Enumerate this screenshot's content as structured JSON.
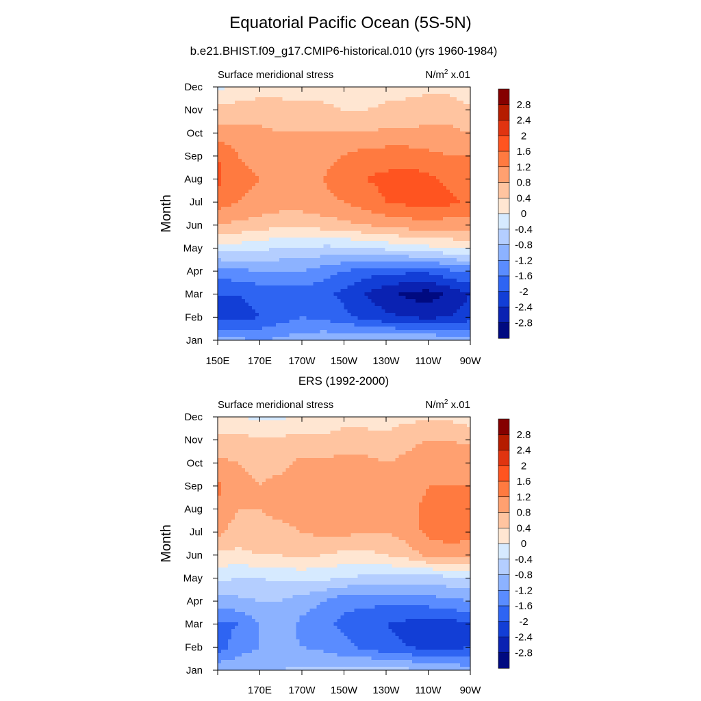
{
  "title": "Equatorial Pacific Ocean (5S-5N)",
  "colorbar": {
    "labels": [
      "2.8",
      "2.4",
      "2",
      "1.6",
      "1.2",
      "0.8",
      "0.4",
      "0",
      "-0.4",
      "-0.8",
      "-1.2",
      "-1.6",
      "-2",
      "-2.4",
      "-2.8"
    ],
    "colors": [
      "#850000",
      "#b51c00",
      "#e03410",
      "#ff5420",
      "#ff7a40",
      "#ffa070",
      "#ffc4a0",
      "#ffe6d2",
      "#d6eaff",
      "#b4ceff",
      "#8cb2ff",
      "#5a8cff",
      "#2e64f2",
      "#123ed6",
      "#0a22b2",
      "#000a80"
    ]
  },
  "chart_data": [
    {
      "type": "heatmap",
      "title": "b.e21.BHIST.f09_g17.CMIP6-historical.010 (yrs 1960-1984)",
      "left_label": "Surface meridional stress",
      "units_base": "N/m",
      "units_exp": "2",
      "units_suffix": " x.01",
      "ylabel": "Month",
      "xticks": [
        "150E",
        "170E",
        "170W",
        "150W",
        "130W",
        "110W",
        "90W"
      ],
      "yticks": [
        "Jan",
        "Feb",
        "Mar",
        "Apr",
        "May",
        "Jun",
        "Jul",
        "Aug",
        "Sep",
        "Oct",
        "Nov",
        "Dec"
      ],
      "xlim": [
        150,
        270
      ],
      "ylim": [
        1,
        12
      ],
      "x": [
        150,
        160,
        170,
        180,
        190,
        200,
        210,
        220,
        230,
        240,
        250,
        260,
        270
      ],
      "y": [
        1,
        2,
        3,
        4,
        5,
        6,
        7,
        8,
        9,
        10,
        11,
        12
      ],
      "z": [
        [
          -1.0,
          -1.1,
          -1.2,
          -1.1,
          -1.0,
          -0.9,
          -0.8,
          -0.8,
          -0.8,
          -0.8,
          -0.8,
          -0.9,
          -1.0
        ],
        [
          -2.2,
          -2.1,
          -2.0,
          -1.8,
          -1.6,
          -1.7,
          -1.9,
          -2.1,
          -2.3,
          -2.4,
          -2.5,
          -2.4,
          -2.2
        ],
        [
          -2.0,
          -2.0,
          -1.9,
          -1.9,
          -1.8,
          -1.9,
          -2.1,
          -2.4,
          -2.7,
          -2.9,
          -3.0,
          -2.7,
          -2.4
        ],
        [
          -1.4,
          -1.3,
          -1.2,
          -1.2,
          -1.2,
          -1.4,
          -1.6,
          -1.8,
          -1.9,
          -1.9,
          -1.9,
          -1.7,
          -1.5
        ],
        [
          -0.2,
          -0.2,
          -0.3,
          -0.4,
          -0.4,
          -0.5,
          -0.5,
          -0.4,
          -0.3,
          -0.2,
          -0.1,
          0.0,
          0.1
        ],
        [
          0.8,
          0.7,
          0.6,
          0.5,
          0.5,
          0.6,
          0.7,
          0.8,
          0.9,
          1.0,
          1.0,
          1.0,
          1.0
        ],
        [
          1.4,
          1.2,
          1.1,
          1.0,
          1.0,
          1.1,
          1.2,
          1.4,
          1.6,
          1.7,
          1.8,
          1.7,
          1.5
        ],
        [
          1.7,
          1.3,
          1.2,
          1.1,
          1.1,
          1.2,
          1.4,
          1.6,
          1.7,
          1.8,
          1.7,
          1.5,
          1.3
        ],
        [
          1.6,
          1.2,
          1.1,
          1.0,
          1.0,
          1.1,
          1.2,
          1.4,
          1.4,
          1.4,
          1.3,
          1.2,
          1.2
        ],
        [
          1.0,
          0.9,
          0.9,
          0.8,
          0.8,
          0.8,
          0.8,
          0.8,
          0.9,
          0.9,
          0.9,
          0.9,
          0.8
        ],
        [
          0.5,
          0.6,
          0.6,
          0.6,
          0.5,
          0.5,
          0.4,
          0.4,
          0.5,
          0.5,
          0.6,
          0.6,
          0.5
        ],
        [
          -0.1,
          0.1,
          0.2,
          0.2,
          0.2,
          0.2,
          0.1,
          0.1,
          0.2,
          0.3,
          0.3,
          0.3,
          0.1
        ]
      ],
      "levels": [
        -2.8,
        -2.4,
        -2.0,
        -1.6,
        -1.2,
        -0.8,
        -0.4,
        0,
        0.4,
        0.8,
        1.2,
        1.6,
        2.0,
        2.4,
        2.8
      ]
    },
    {
      "type": "heatmap",
      "title": "ERS (1992-2000)",
      "left_label": "Surface meridional stress",
      "units_base": "N/m",
      "units_exp": "2",
      "units_suffix": " x.01",
      "ylabel": "Month",
      "xticks": [
        "170E",
        "170W",
        "150W",
        "130W",
        "110W",
        "90W"
      ],
      "yticks": [
        "Jan",
        "Feb",
        "Mar",
        "Apr",
        "May",
        "Jun",
        "Jul",
        "Aug",
        "Sep",
        "Oct",
        "Nov",
        "Dec"
      ],
      "xlim": [
        150,
        270
      ],
      "ylim": [
        1,
        12
      ],
      "x": [
        150,
        160,
        170,
        180,
        190,
        200,
        210,
        220,
        230,
        240,
        250,
        260,
        270
      ],
      "y": [
        1,
        2,
        3,
        4,
        5,
        6,
        7,
        8,
        9,
        10,
        11,
        12
      ],
      "z": [
        [
          -0.9,
          -0.9,
          -0.8,
          -0.8,
          -0.7,
          -0.7,
          -0.7,
          -0.6,
          -0.6,
          -0.7,
          -0.8,
          -0.9,
          -1.0
        ],
        [
          -1.8,
          -1.4,
          -1.2,
          -1.1,
          -1.2,
          -1.3,
          -1.5,
          -1.7,
          -1.9,
          -2.0,
          -2.1,
          -2.1,
          -2.0
        ],
        [
          -1.7,
          -1.6,
          -1.2,
          -1.0,
          -1.3,
          -1.5,
          -1.7,
          -1.8,
          -2.0,
          -2.1,
          -2.2,
          -2.2,
          -2.0
        ],
        [
          -1.0,
          -0.9,
          -0.8,
          -0.8,
          -1.0,
          -1.2,
          -1.5,
          -1.5,
          -1.5,
          -1.5,
          -1.4,
          -1.3,
          -1.2
        ],
        [
          -0.3,
          -0.4,
          -0.4,
          -0.3,
          -0.3,
          -0.3,
          -0.4,
          -0.5,
          -0.5,
          -0.6,
          -0.6,
          -0.5,
          -0.4
        ],
        [
          0.3,
          0.3,
          0.4,
          0.4,
          0.5,
          0.4,
          0.3,
          0.3,
          0.4,
          0.6,
          0.9,
          1.0,
          1.0
        ],
        [
          0.9,
          0.6,
          0.7,
          0.7,
          0.8,
          0.9,
          0.9,
          0.8,
          0.8,
          1.0,
          1.3,
          1.4,
          1.3
        ],
        [
          1.1,
          0.8,
          0.8,
          0.9,
          1.0,
          1.0,
          1.0,
          1.0,
          0.9,
          1.1,
          1.3,
          1.4,
          1.4
        ],
        [
          1.3,
          0.9,
          0.8,
          0.9,
          1.0,
          1.0,
          1.0,
          0.9,
          0.9,
          1.0,
          1.2,
          1.2,
          1.2
        ],
        [
          0.9,
          0.8,
          0.7,
          0.7,
          0.9,
          0.9,
          0.9,
          0.9,
          0.8,
          0.9,
          1.0,
          1.0,
          1.1
        ],
        [
          0.5,
          0.5,
          0.5,
          0.5,
          0.5,
          0.5,
          0.6,
          0.6,
          0.5,
          0.7,
          0.8,
          0.8,
          0.7
        ],
        [
          0.1,
          0.0,
          -0.1,
          -0.1,
          0.1,
          0.1,
          0.2,
          0.2,
          0.2,
          0.3,
          0.3,
          0.3,
          0.2
        ]
      ],
      "levels": [
        -2.8,
        -2.4,
        -2.0,
        -1.6,
        -1.2,
        -0.8,
        -0.4,
        0,
        0.4,
        0.8,
        1.2,
        1.6,
        2.0,
        2.4,
        2.8
      ]
    }
  ]
}
